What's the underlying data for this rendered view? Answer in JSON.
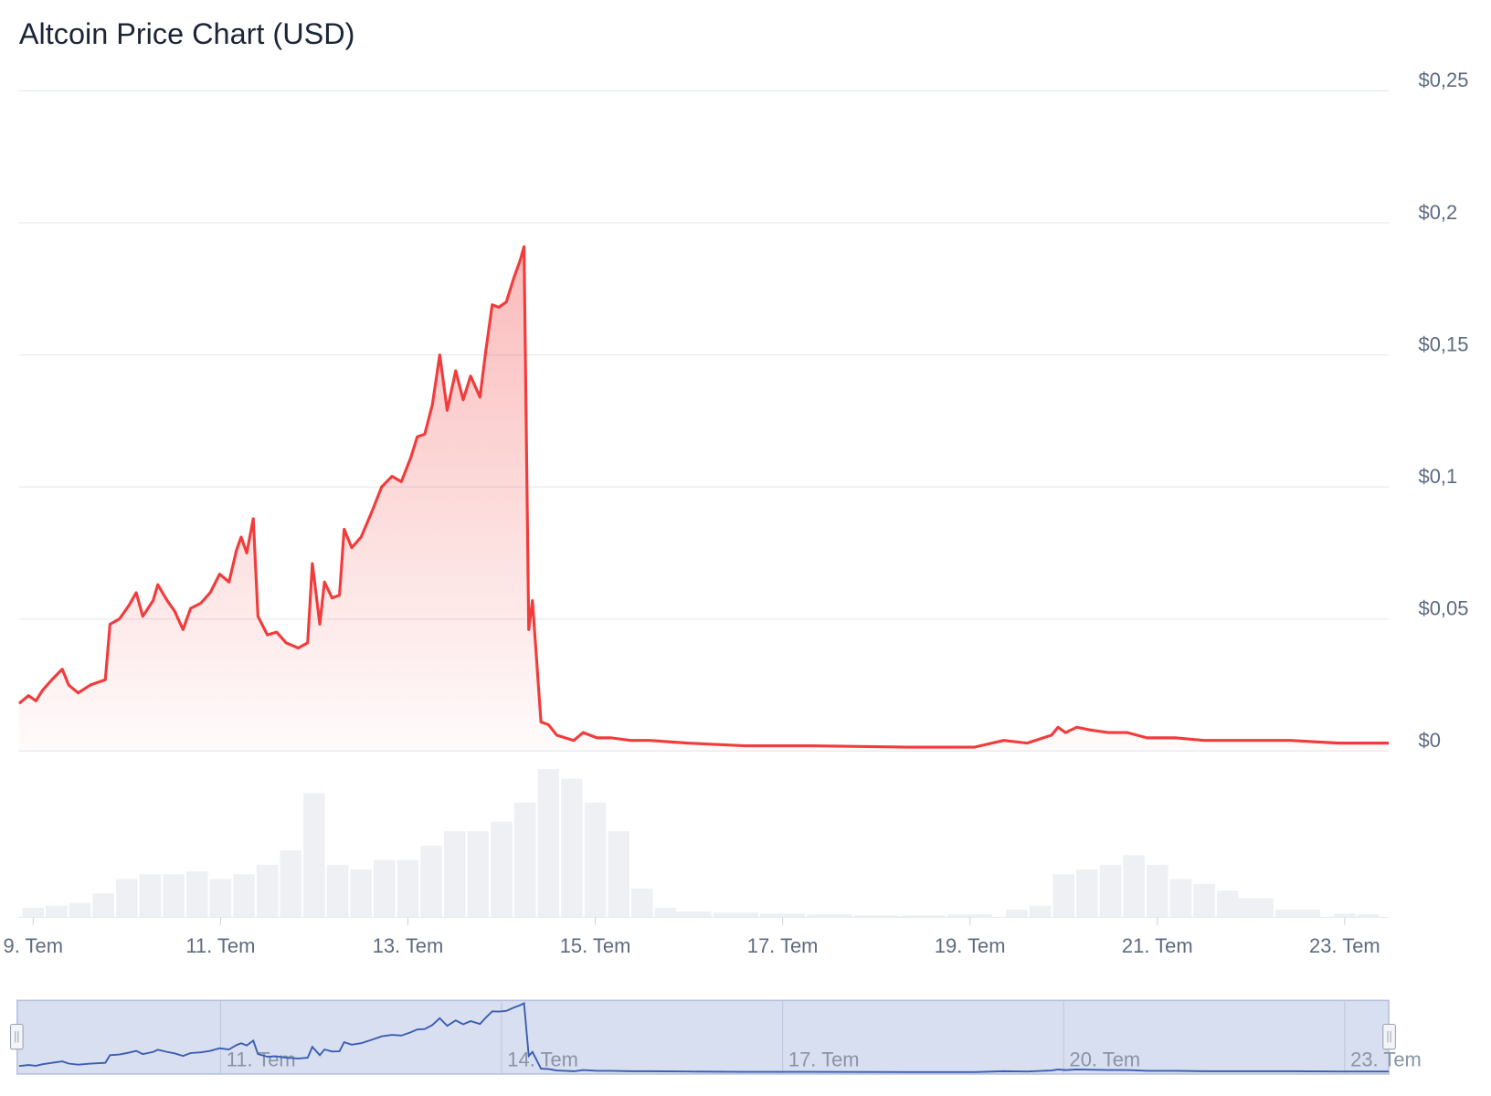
{
  "chart_data": {
    "type": "line",
    "title": "Altcoin Price Chart (USD)",
    "x": [
      8.85,
      8.95,
      9.03,
      9.1,
      9.2,
      9.31,
      9.38,
      9.48,
      9.61,
      9.77,
      9.82,
      9.92,
      10.02,
      10.1,
      10.17,
      10.28,
      10.33,
      10.43,
      10.51,
      10.6,
      10.68,
      10.79,
      10.89,
      10.99,
      11.09,
      11.17,
      11.22,
      11.28,
      11.35,
      11.4,
      11.5,
      11.6,
      11.7,
      11.83,
      11.93,
      11.98,
      12.06,
      12.11,
      12.19,
      12.27,
      12.32,
      12.4,
      12.5,
      12.62,
      12.72,
      12.83,
      12.93,
      13.03,
      13.1,
      13.18,
      13.26,
      13.34,
      13.42,
      13.51,
      13.59,
      13.67,
      13.77,
      13.83,
      13.9,
      13.97,
      14.05,
      14.13,
      14.2,
      14.24,
      14.29,
      14.33,
      14.42,
      14.5,
      14.59,
      14.77,
      14.87,
      15.02,
      15.17,
      15.38,
      15.58,
      15.99,
      16.6,
      17.32,
      18.34,
      19.05,
      19.36,
      19.61,
      19.87,
      19.94,
      20.02,
      20.14,
      20.28,
      20.48,
      20.68,
      20.89,
      21.19,
      21.5,
      21.91,
      22.42,
      22.93,
      23.47
    ],
    "series": [
      {
        "color": "#f23b3b",
        "values": [
          0.018,
          0.021,
          0.019,
          0.023,
          0.027,
          0.031,
          0.025,
          0.022,
          0.025,
          0.027,
          0.048,
          0.05,
          0.055,
          0.06,
          0.051,
          0.057,
          0.063,
          0.057,
          0.053,
          0.046,
          0.054,
          0.056,
          0.06,
          0.067,
          0.064,
          0.076,
          0.081,
          0.075,
          0.088,
          0.051,
          0.044,
          0.045,
          0.041,
          0.039,
          0.041,
          0.071,
          0.048,
          0.064,
          0.058,
          0.059,
          0.084,
          0.077,
          0.081,
          0.091,
          0.1,
          0.104,
          0.102,
          0.111,
          0.119,
          0.12,
          0.131,
          0.15,
          0.129,
          0.144,
          0.133,
          0.142,
          0.134,
          0.151,
          0.169,
          0.168,
          0.17,
          0.179,
          0.186,
          0.191,
          0.046,
          0.057,
          0.011,
          0.01,
          0.006,
          0.004,
          0.007,
          0.005,
          0.005,
          0.004,
          0.004,
          0.003,
          0.002,
          0.002,
          0.0015,
          0.0015,
          0.004,
          0.003,
          0.006,
          0.009,
          0.007,
          0.009,
          0.008,
          0.007,
          0.007,
          0.005,
          0.005,
          0.004,
          0.004,
          0.004,
          0.003,
          0.003
        ]
      }
    ],
    "xlim": [
      8.85,
      23.47
    ],
    "xticks": [
      {
        "value": 9,
        "label": "9. Tem"
      },
      {
        "value": 11,
        "label": "11. Tem"
      },
      {
        "value": 13,
        "label": "13. Tem"
      },
      {
        "value": 15,
        "label": "15. Tem"
      },
      {
        "value": 17,
        "label": "17. Tem"
      },
      {
        "value": 19,
        "label": "19. Tem"
      },
      {
        "value": 21,
        "label": "21. Tem"
      },
      {
        "value": 23,
        "label": "23. Tem"
      }
    ],
    "ylim": [
      0,
      0.25
    ],
    "yticks": [
      {
        "value": 0,
        "label": "$0"
      },
      {
        "value": 0.05,
        "label": "$0,05"
      },
      {
        "value": 0.1,
        "label": "$0,1"
      },
      {
        "value": 0.15,
        "label": "$0,15"
      },
      {
        "value": 0.2,
        "label": "$0,2"
      },
      {
        "value": 0.25,
        "label": "$0,25"
      }
    ],
    "grid": true,
    "volume": {
      "color": "#eef0f3",
      "x": [
        9,
        9.25,
        9.5,
        9.75,
        10,
        10.25,
        10.5,
        10.75,
        11,
        11.25,
        11.5,
        11.75,
        12,
        12.25,
        12.5,
        12.75,
        13,
        13.25,
        13.5,
        13.75,
        14,
        14.25,
        14.5,
        14.75,
        15,
        15.25,
        15.5,
        15.75,
        16,
        16.5,
        17,
        17.5,
        18,
        18.5,
        19,
        19.5,
        19.75,
        20,
        20.25,
        20.5,
        20.75,
        21,
        21.25,
        21.5,
        21.75,
        22,
        22.5,
        23,
        23.25
      ],
      "values": [
        10,
        12,
        15,
        25,
        40,
        45,
        45,
        48,
        40,
        45,
        55,
        70,
        130,
        55,
        50,
        60,
        60,
        75,
        90,
        90,
        100,
        120,
        155,
        145,
        120,
        90,
        30,
        10,
        6,
        5,
        4,
        3,
        2,
        2,
        3,
        8,
        12,
        45,
        50,
        55,
        65,
        55,
        40,
        35,
        28,
        20,
        8,
        4,
        3
      ],
      "ylim": [
        0,
        160
      ]
    },
    "navigator": {
      "color": "#3a5db3",
      "xticks": [
        {
          "value": 11,
          "label": "11. Tem"
        },
        {
          "value": 14,
          "label": "14. Tem"
        },
        {
          "value": 17,
          "label": "17. Tem"
        },
        {
          "value": 20,
          "label": "20. Tem"
        },
        {
          "value": 23,
          "label": "23. Tem"
        }
      ]
    }
  }
}
